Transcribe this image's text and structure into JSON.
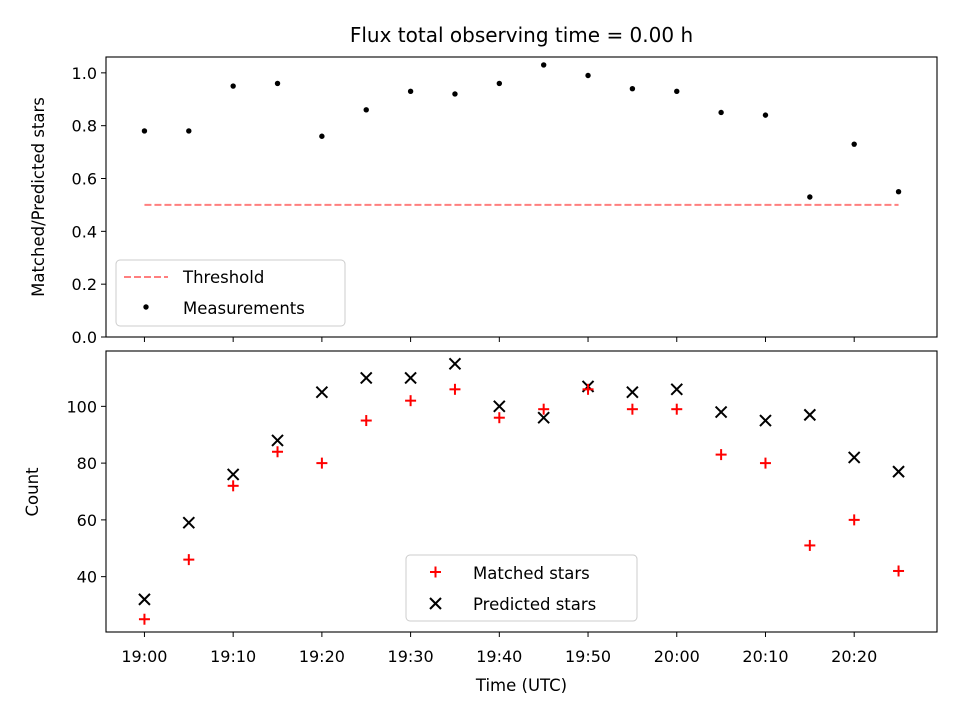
{
  "chart_data": [
    {
      "type": "scatter",
      "title": "Flux total observing time = 0.00 h",
      "ylabel": "Matched/Predicted stars",
      "xlabel": "",
      "ylim": [
        0,
        1.06
      ],
      "yticks": [
        0,
        0.2,
        0.4,
        0.6,
        0.8,
        1.0
      ],
      "ytick_labels": [
        "0.0",
        "0.2",
        "0.4",
        "0.6",
        "0.8",
        "1.0"
      ],
      "grid": false,
      "legend_position": "lower-left",
      "threshold": {
        "name": "Threshold",
        "value": 0.5,
        "x_start": "19:00",
        "x_end": "20:25",
        "color": "#ff7f7f",
        "style": "dashed"
      },
      "series": [
        {
          "name": "Measurements",
          "marker": "dot",
          "color": "#000000",
          "x": [
            "19:00",
            "19:05",
            "19:10",
            "19:15",
            "19:20",
            "19:25",
            "19:30",
            "19:35",
            "19:40",
            "19:45",
            "19:50",
            "19:55",
            "20:00",
            "20:05",
            "20:10",
            "20:15",
            "20:20",
            "20:25"
          ],
          "y": [
            0.78,
            0.78,
            0.95,
            0.96,
            0.76,
            0.86,
            0.93,
            0.92,
            0.96,
            1.03,
            0.99,
            0.94,
            0.93,
            0.85,
            0.84,
            0.53,
            0.73,
            0.55
          ]
        }
      ]
    },
    {
      "type": "scatter",
      "title": "",
      "ylabel": "Count",
      "xlabel": "Time (UTC)",
      "ylim": [
        20.5,
        119.5
      ],
      "yticks": [
        40,
        60,
        80,
        100
      ],
      "ytick_labels": [
        "40",
        "60",
        "80",
        "100"
      ],
      "xlim": [
        "18:55:40",
        "20:29:20"
      ],
      "xticks": [
        "19:00",
        "19:10",
        "19:20",
        "19:30",
        "19:40",
        "19:50",
        "20:00",
        "20:10",
        "20:20"
      ],
      "xtick_labels": [
        "19:00",
        "19:10",
        "19:20",
        "19:30",
        "19:40",
        "19:50",
        "20:00",
        "20:10",
        "20:20"
      ],
      "grid": false,
      "legend_position": "lower-center",
      "series": [
        {
          "name": "Matched stars",
          "marker": "plus",
          "color": "#ff0000",
          "x": [
            "19:00",
            "19:05",
            "19:10",
            "19:15",
            "19:20",
            "19:25",
            "19:30",
            "19:35",
            "19:40",
            "19:45",
            "19:50",
            "19:55",
            "20:00",
            "20:05",
            "20:10",
            "20:15",
            "20:20",
            "20:25"
          ],
          "y": [
            25,
            46,
            72,
            84,
            80,
            95,
            102,
            106,
            96,
            99,
            106,
            99,
            99,
            83,
            80,
            51,
            60,
            42
          ]
        },
        {
          "name": "Predicted stars",
          "marker": "x",
          "color": "#000000",
          "x": [
            "19:00",
            "19:05",
            "19:10",
            "19:15",
            "19:20",
            "19:25",
            "19:30",
            "19:35",
            "19:40",
            "19:45",
            "19:50",
            "19:55",
            "20:00",
            "20:05",
            "20:10",
            "20:15",
            "20:20",
            "20:25"
          ],
          "y": [
            32,
            59,
            76,
            88,
            105,
            110,
            110,
            115,
            100,
            96,
            107,
            105,
            106,
            98,
            95,
            97,
            82,
            77
          ]
        }
      ]
    }
  ]
}
